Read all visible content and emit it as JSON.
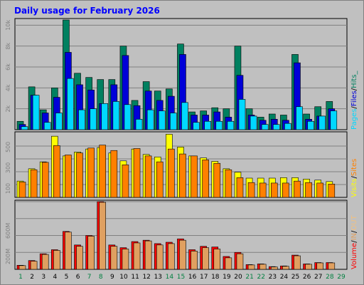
{
  "colors": {
    "background": "#C0C0C0",
    "frame": "#ffffff",
    "title": "#0000FF",
    "pages": "#00D8FF",
    "files": "#0000D8",
    "hits": "#008060",
    "visits": "#FFFF00",
    "sites": "#FF8000",
    "kbytes": "#FF0000",
    "in": "#E0A060",
    "out": "#F0C080",
    "weekday": "#000000",
    "weekend": "#008040",
    "grid": "#808080",
    "tick_label": "#808080"
  },
  "chart_data": {
    "type": "bar",
    "title": "Daily usage for February 2026",
    "x": {
      "labels": [
        "1",
        "2",
        "3",
        "4",
        "5",
        "6",
        "7",
        "8",
        "9",
        "10",
        "11",
        "12",
        "13",
        "14",
        "15",
        "16",
        "17",
        "18",
        "19",
        "20",
        "21",
        "22",
        "23",
        "24",
        "25",
        "26",
        "27",
        "28",
        "29"
      ],
      "weekend": [
        true,
        false,
        false,
        false,
        false,
        false,
        true,
        true,
        false,
        false,
        false,
        false,
        false,
        true,
        true,
        false,
        false,
        false,
        false,
        false,
        true,
        true,
        false,
        false,
        false,
        false,
        false,
        true,
        true
      ]
    },
    "panels": [
      {
        "name": "hits-files-pages",
        "legend": [
          {
            "text": "Pages",
            "color_key": "pages"
          },
          {
            "text": "/",
            "color_key": "weekday"
          },
          {
            "text": "Files",
            "color_key": "files"
          },
          {
            "text": "/",
            "color_key": "weekday"
          },
          {
            "text": "Hits_",
            "color_key": "hits"
          }
        ],
        "ylim": [
          0,
          10500
        ],
        "grid": [
          2000,
          4000,
          6000,
          8000,
          10000
        ],
        "tick_labels": [
          "2k",
          "4k",
          "6k",
          "8k",
          "10k"
        ],
        "series": [
          {
            "color_key": "hits",
            "offset": 0,
            "values": [
              800,
              4100,
              1900,
              4000,
              10500,
              5400,
              5000,
              4800,
              4800,
              8000,
              2800,
              4600,
              3700,
              3900,
              8200,
              1700,
              1800,
              2100,
              2000,
              8000,
              2000,
              1200,
              1500,
              1400,
              7200,
              1500,
              2200,
              2700,
              0
            ]
          },
          {
            "color_key": "files",
            "offset": 3,
            "values": [
              500,
              3300,
              1600,
              3100,
              7400,
              4300,
              3800,
              2500,
              4300,
              7100,
              2300,
              3700,
              2800,
              3200,
              7200,
              1400,
              1400,
              1700,
              1200,
              5200,
              1400,
              900,
              1000,
              900,
              6400,
              1000,
              1300,
              2000,
              0
            ]
          },
          {
            "color_key": "pages",
            "offset": 6,
            "values": [
              300,
              3300,
              700,
              1600,
              4900,
              1900,
              2000,
              2500,
              2700,
              2400,
              1000,
              1900,
              1800,
              1600,
              2600,
              700,
              800,
              800,
              800,
              2900,
              1300,
              500,
              500,
              600,
              2200,
              800,
              1300,
              1800,
              0
            ]
          }
        ]
      },
      {
        "name": "visits-sites",
        "legend": [
          {
            "text": "Visits",
            "color_key": "visits"
          },
          {
            "text": "/",
            "color_key": "weekday"
          },
          {
            "text": "Sites",
            "color_key": "sites"
          }
        ],
        "ylim": [
          0,
          650
        ],
        "grid": [
          130,
          260,
          390,
          520
        ],
        "tick_labels": [
          "100",
          "300",
          "500"
        ],
        "tick_values": [
          90,
          300,
          510
        ],
        "series": [
          {
            "color_key": "visits",
            "offset": 0,
            "values": [
              165,
              290,
              360,
              620,
              420,
              460,
              490,
              505,
              450,
              370,
              490,
              435,
              410,
              640,
              510,
              420,
              400,
              365,
              290,
              255,
              195,
              195,
              195,
              200,
              200,
              185,
              175,
              160,
              0
            ]
          },
          {
            "color_key": "sites",
            "offset": 3,
            "values": [
              155,
              280,
              355,
              525,
              430,
              450,
              500,
              530,
              475,
              330,
              495,
              420,
              360,
              490,
              440,
              420,
              380,
              345,
              280,
              200,
              150,
              145,
              145,
              145,
              165,
              150,
              145,
              135,
              0
            ]
          }
        ]
      },
      {
        "name": "volume-in-out",
        "legend": [
          {
            "text": "Volume",
            "color_key": "kbytes"
          },
          {
            "text": "/",
            "color_key": "weekday"
          },
          {
            "text": "IN",
            "color_key": "in"
          },
          {
            "text": "/",
            "color_key": "weekday"
          },
          {
            "text": "OUT",
            "color_key": "out"
          }
        ],
        "ylim": [
          0,
          1000
        ],
        "grid": [
          250,
          500,
          750,
          1000
        ],
        "tick_labels": [
          "200M",
          "600M"
        ],
        "tick_values": [
          190,
          570
        ],
        "series": [
          {
            "color_key": "kbytes",
            "offset": 0,
            "values": [
              60,
              130,
              230,
              290,
              560,
              360,
              500,
              1000,
              360,
              320,
              410,
              430,
              380,
              400,
              450,
              290,
              340,
              330,
              190,
              250,
              70,
              80,
              40,
              50,
              210,
              80,
              100,
              100,
              0
            ]
          },
          {
            "color_key": "in",
            "offset": 3,
            "values": [
              55,
              120,
              220,
              280,
              550,
              340,
              490,
              990,
              340,
              300,
              390,
              420,
              360,
              380,
              430,
              270,
              320,
              300,
              170,
              230,
              65,
              75,
              35,
              45,
              200,
              75,
              95,
              95,
              0
            ]
          }
        ]
      }
    ]
  }
}
